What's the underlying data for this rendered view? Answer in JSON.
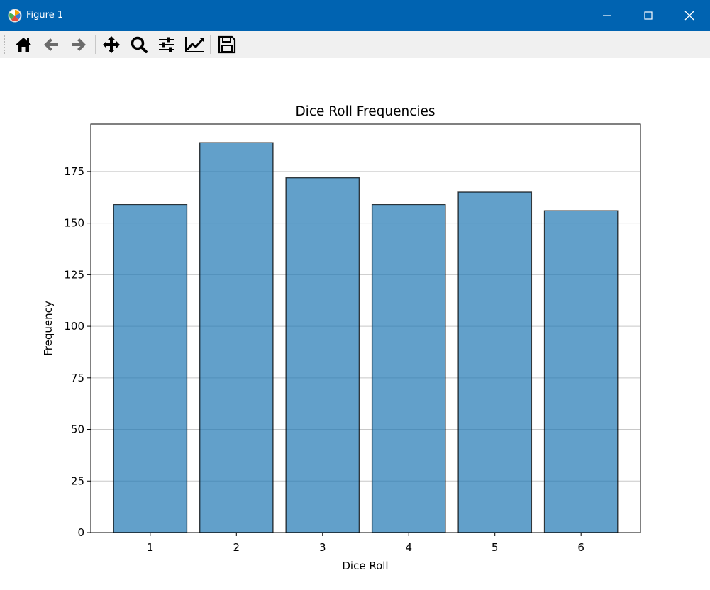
{
  "window": {
    "title": "Figure 1",
    "title_bar_color": "#0063b1",
    "controls": [
      "minimize-icon",
      "maximize-icon",
      "close-icon"
    ]
  },
  "toolbar": {
    "buttons": [
      "home-icon",
      "back-arrow-icon",
      "forward-arrow-icon",
      "pan-move-icon",
      "zoom-magnifier-icon",
      "subplots-config-icon",
      "edit-axis-icon",
      "save-floppy-icon"
    ]
  },
  "chart_data": {
    "type": "bar",
    "title": "Dice Roll Frequencies",
    "xlabel": "Dice Roll",
    "ylabel": "Frequency",
    "categories": [
      "1",
      "2",
      "3",
      "4",
      "5",
      "6"
    ],
    "values": [
      159,
      189,
      172,
      159,
      165,
      156
    ],
    "ylim": [
      0,
      198
    ],
    "yticks": [
      "0",
      "25",
      "50",
      "75",
      "100",
      "125",
      "150",
      "175"
    ],
    "bar_color": "#1f77b4",
    "bar_opacity": 0.7,
    "bar_edge_color": "#000000",
    "grid": "y-axis",
    "grid_color": "#c8c8c8"
  }
}
